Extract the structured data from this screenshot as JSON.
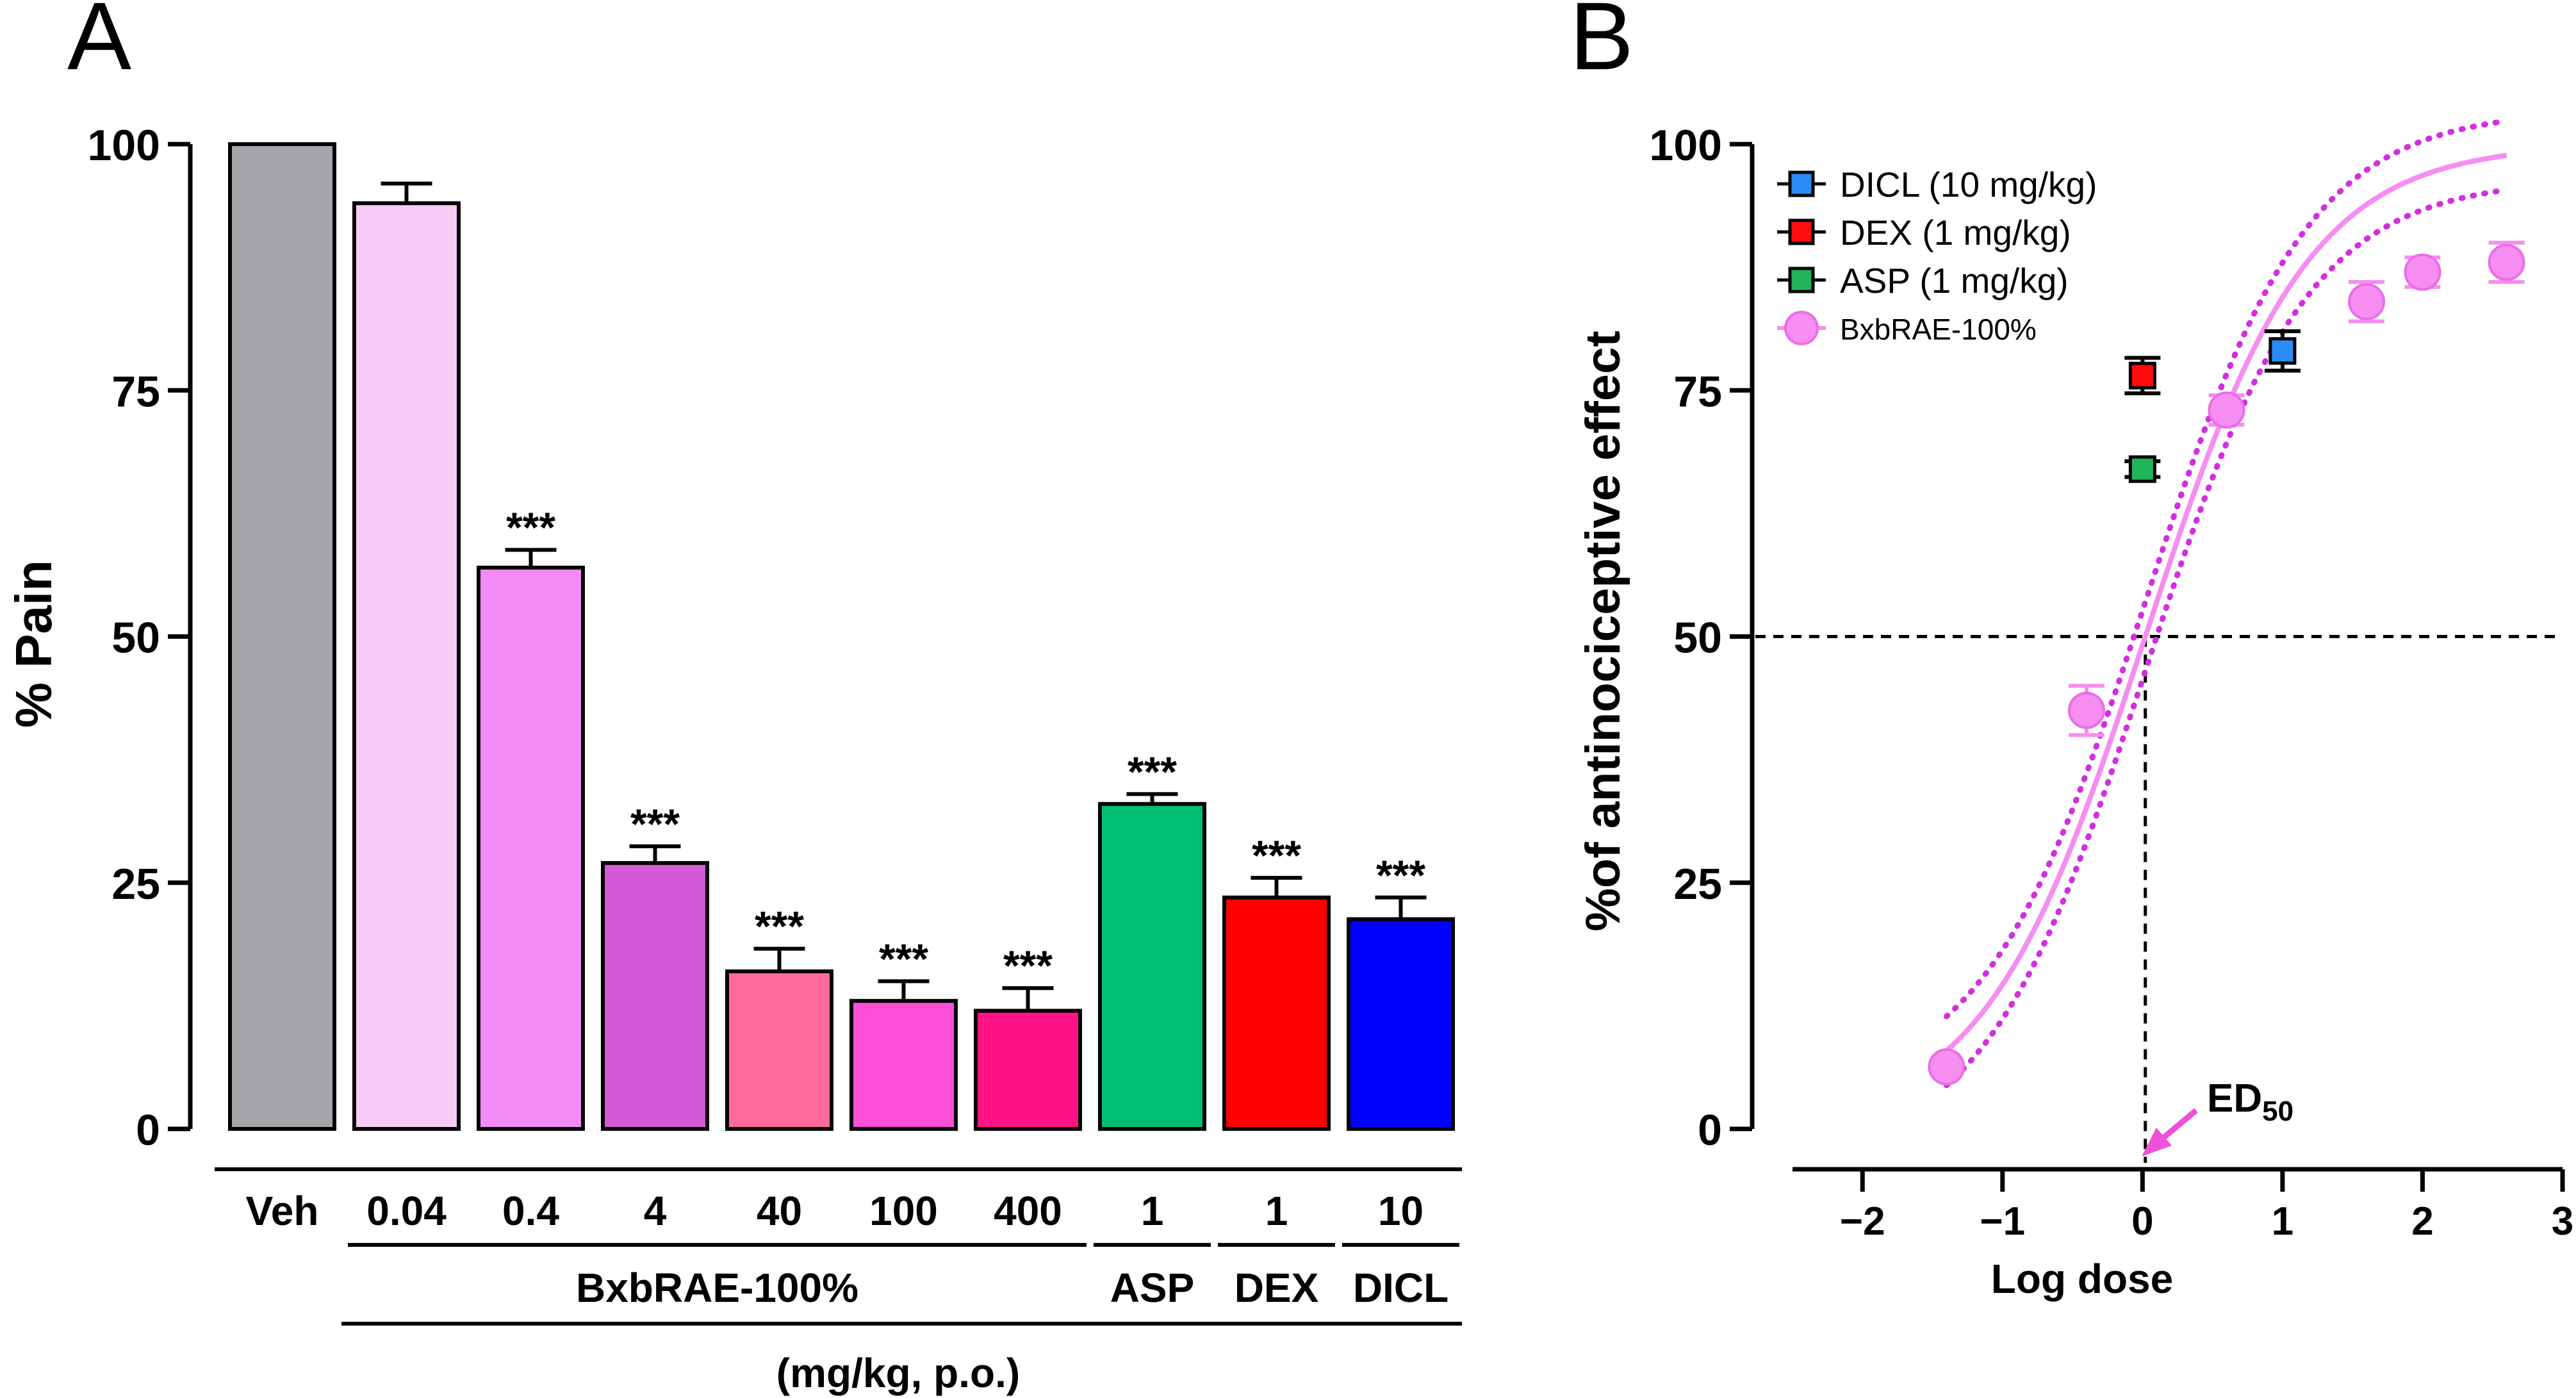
{
  "panel_a": {
    "letter": "A",
    "ylabel": "% Pain",
    "group_caption": "BxbRAE-100%",
    "unit_caption": "(mg/kg, p.o.)"
  },
  "panel_b": {
    "letter": "B",
    "ylabel": "%of antinociceptive effect",
    "xlabel": "Log dose",
    "ed50_main": "ED",
    "ed50_sub": "50"
  },
  "chart_data": [
    {
      "type": "bar",
      "title": "A",
      "ylabel": "% Pain",
      "xlabel": "(mg/kg, p.o.)",
      "ylim": [
        0,
        100
      ],
      "yticks": [
        0,
        25,
        50,
        75,
        100
      ],
      "categories": [
        "Veh",
        "0.04",
        "0.4",
        "4",
        "40",
        "100",
        "400",
        "1",
        "1",
        "10"
      ],
      "groups": [
        {
          "label": "BxbRAE-100%",
          "from": 1,
          "to": 6
        },
        {
          "label": "ASP",
          "from": 7,
          "to": 7
        },
        {
          "label": "DEX",
          "from": 8,
          "to": 8
        },
        {
          "label": "DICL",
          "from": 9,
          "to": 9
        }
      ],
      "values": [
        100,
        94,
        57,
        27,
        16,
        13,
        12,
        33,
        23.5,
        21.3
      ],
      "errors": [
        0,
        2,
        1.8,
        1.7,
        2.3,
        2,
        2.3,
        1,
        2,
        2.2
      ],
      "significance": [
        "",
        "",
        "***",
        "***",
        "***",
        "***",
        "***",
        "***",
        "***",
        "***"
      ],
      "colors": [
        "#a7a5aa",
        "#f8cbf6",
        "#f38bf6",
        "#d45ad9",
        "#ff6a9a",
        "#ff4fd9",
        "#ff1386",
        "#00bf72",
        "#ff0000",
        "#0000ff"
      ]
    },
    {
      "type": "scatter",
      "title": "B",
      "xlabel": "Log dose",
      "ylabel": "%of antinociceptive effect",
      "xlim": [
        -2.5,
        3
      ],
      "ylim": [
        0,
        100
      ],
      "xticks": [
        -2,
        -1,
        0,
        1,
        2,
        3
      ],
      "xtick_labels": [
        "−2",
        "−1",
        "0",
        "1",
        "2",
        "3"
      ],
      "yticks": [
        0,
        25,
        50,
        75,
        100
      ],
      "reference_y": 50,
      "ed50_x": 0.02,
      "legend_position": "top-left",
      "series": [
        {
          "name": "DICL (10 mg/kg)",
          "marker": "square",
          "color": "#2b8cf5",
          "points": [
            {
              "x": 1,
              "y": 79,
              "err": 2
            }
          ]
        },
        {
          "name": "DEX (1 mg/kg)",
          "marker": "square",
          "color": "#ff0d0d",
          "points": [
            {
              "x": 0,
              "y": 76.5,
              "err": 1.8
            }
          ]
        },
        {
          "name": "ASP (1 mg/kg)",
          "marker": "square",
          "color": "#22b458",
          "points": [
            {
              "x": 0,
              "y": 67,
              "err": 0.8
            }
          ]
        },
        {
          "name": "BxbRAE-100%",
          "marker": "circle",
          "color": "#f58ef0",
          "points": [
            {
              "x": -1.4,
              "y": 6.3,
              "err": 0
            },
            {
              "x": -0.4,
              "y": 42.5,
              "err": 2.5
            },
            {
              "x": 0.6,
              "y": 73,
              "err": 1.5
            },
            {
              "x": 1.6,
              "y": 84,
              "err": 2
            },
            {
              "x": 2,
              "y": 87,
              "err": 1.5
            },
            {
              "x": 2.6,
              "y": 88,
              "err": 2
            }
          ]
        }
      ],
      "fit": {
        "color": "#f58ef0",
        "bottom": 0,
        "top": 100,
        "log_ed50": 0.02,
        "hill_slope": 0.75,
        "x_range": [
          -1.4,
          2.6
        ]
      },
      "ci_band": {
        "color": "#d22ee0",
        "offset": 3.5
      }
    }
  ]
}
